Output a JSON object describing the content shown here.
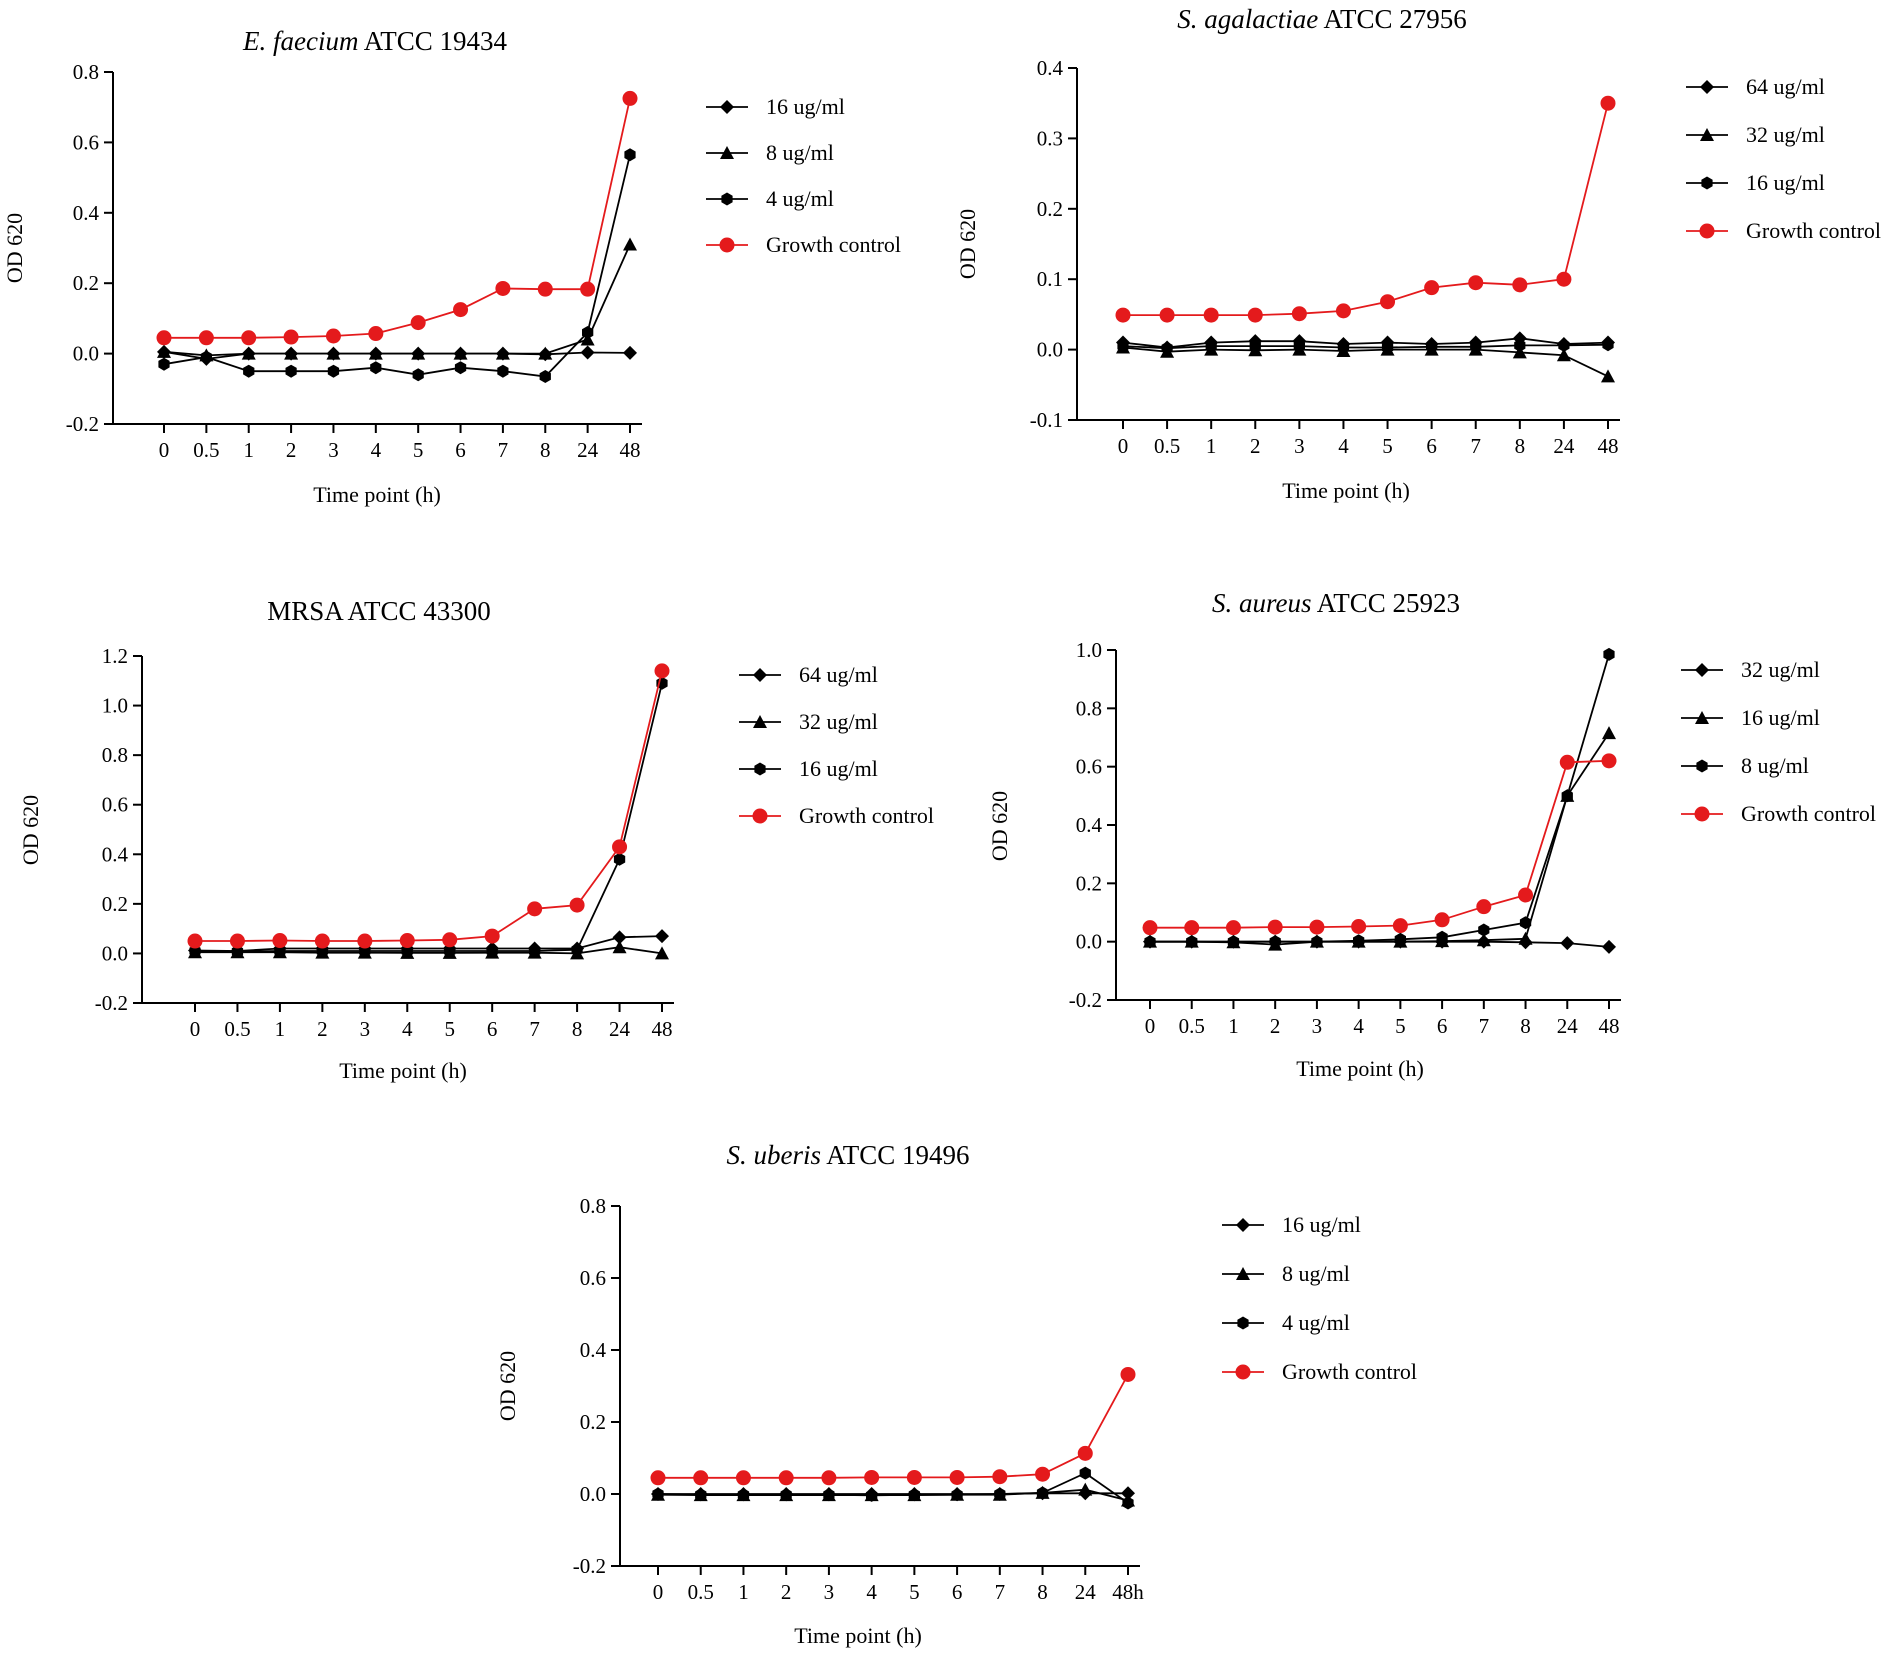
{
  "colors": {
    "treatment": "#000000",
    "control": "#e41a1c",
    "axis": "#000000"
  },
  "chart_data": [
    {
      "type": "line",
      "title_italic": "E. faecium",
      "title_rest": " ATCC 19434",
      "xlabel": "Time point (h)",
      "ylabel": "OD 620",
      "categories": [
        "0",
        "0.5",
        "1",
        "2",
        "3",
        "4",
        "5",
        "6",
        "7",
        "8",
        "24",
        "48"
      ],
      "ylim": [
        -0.2,
        0.8
      ],
      "yticks": [
        "-0.2",
        "0.0",
        "0.2",
        "0.4",
        "0.6",
        "0.8"
      ],
      "series": [
        {
          "name": "16 ug/ml",
          "marker": "diamond",
          "values": [
            0.005,
            -0.015,
            0.0,
            0.0,
            0.0,
            0.0,
            0.0,
            0.0,
            0.0,
            -0.002,
            0.003,
            0.002
          ]
        },
        {
          "name": "8 ug/ml",
          "marker": "triangle",
          "values": [
            0.005,
            -0.005,
            0.0,
            0.0,
            0.0,
            0.0,
            0.0,
            0.0,
            0.0,
            0.0,
            0.04,
            0.31
          ]
        },
        {
          "name": "4 ug/ml",
          "marker": "hexagon",
          "values": [
            -0.03,
            -0.01,
            -0.05,
            -0.05,
            -0.05,
            -0.04,
            -0.06,
            -0.04,
            -0.05,
            -0.065,
            0.06,
            0.565
          ]
        },
        {
          "name": "Growth control",
          "marker": "circle",
          "values": [
            0.045,
            0.045,
            0.045,
            0.047,
            0.05,
            0.057,
            0.088,
            0.125,
            0.185,
            0.183,
            0.183,
            0.725
          ]
        }
      ]
    },
    {
      "type": "line",
      "title_italic": "S. agalactiae",
      "title_rest": " ATCC 27956",
      "xlabel": "Time point (h)",
      "ylabel": "OD 620",
      "categories": [
        "0",
        "0.5",
        "1",
        "2",
        "3",
        "4",
        "5",
        "6",
        "7",
        "8",
        "24",
        "48"
      ],
      "ylim": [
        -0.1,
        0.4
      ],
      "yticks": [
        "-0.1",
        "0.0",
        "0.1",
        "0.2",
        "0.3",
        "0.4"
      ],
      "series": [
        {
          "name": "64 ug/ml",
          "marker": "diamond",
          "values": [
            0.01,
            0.003,
            0.01,
            0.012,
            0.012,
            0.008,
            0.01,
            0.008,
            0.01,
            0.016,
            0.008,
            0.01
          ]
        },
        {
          "name": "32 ug/ml",
          "marker": "triangle",
          "values": [
            0.003,
            -0.003,
            0.0,
            -0.001,
            0.0,
            -0.002,
            0.0,
            0.0,
            0.0,
            -0.004,
            -0.008,
            -0.038
          ]
        },
        {
          "name": "16 ug/ml",
          "marker": "hexagon",
          "values": [
            0.005,
            0.002,
            0.005,
            0.005,
            0.005,
            0.003,
            0.003,
            0.004,
            0.004,
            0.006,
            0.006,
            0.007
          ]
        },
        {
          "name": "Growth control",
          "marker": "circle",
          "values": [
            0.049,
            0.049,
            0.049,
            0.049,
            0.051,
            0.055,
            0.068,
            0.088,
            0.095,
            0.092,
            0.1,
            0.35
          ]
        }
      ]
    },
    {
      "type": "line",
      "title_italic": "",
      "title_rest": "MRSA ATCC 43300",
      "xlabel": "Time point (h)",
      "ylabel": "OD 620",
      "categories": [
        "0",
        "0.5",
        "1",
        "2",
        "3",
        "4",
        "5",
        "6",
        "7",
        "8",
        "24",
        "48"
      ],
      "ylim": [
        -0.2,
        1.2
      ],
      "yticks": [
        "-0.2",
        "0.0",
        "0.2",
        "0.4",
        "0.6",
        "0.8",
        "1.0",
        "1.2"
      ],
      "series": [
        {
          "name": "64 ug/ml",
          "marker": "diamond",
          "values": [
            0.012,
            0.01,
            0.02,
            0.02,
            0.02,
            0.02,
            0.02,
            0.02,
            0.02,
            0.02,
            0.065,
            0.07
          ]
        },
        {
          "name": "32 ug/ml",
          "marker": "triangle",
          "values": [
            0.005,
            0.005,
            0.005,
            0.003,
            0.003,
            0.002,
            0.002,
            0.003,
            0.003,
            0.0,
            0.025,
            0.0
          ]
        },
        {
          "name": "16 ug/ml",
          "marker": "hexagon",
          "values": [
            0.01,
            0.008,
            0.01,
            0.01,
            0.01,
            0.01,
            0.01,
            0.01,
            0.01,
            0.015,
            0.38,
            1.09
          ]
        },
        {
          "name": "Growth control",
          "marker": "circle",
          "values": [
            0.05,
            0.05,
            0.052,
            0.05,
            0.05,
            0.052,
            0.055,
            0.07,
            0.18,
            0.195,
            0.43,
            1.14
          ]
        }
      ]
    },
    {
      "type": "line",
      "title_italic": "S. aureus",
      "title_rest": " ATCC 25923",
      "xlabel": "Time point (h)",
      "ylabel": "OD 620",
      "categories": [
        "0",
        "0.5",
        "1",
        "2",
        "3",
        "4",
        "5",
        "6",
        "7",
        "8",
        "24",
        "48"
      ],
      "ylim": [
        -0.2,
        1.0
      ],
      "yticks": [
        "-0.2",
        "0.0",
        "0.2",
        "0.4",
        "0.6",
        "0.8",
        "1.0"
      ],
      "series": [
        {
          "name": "32 ug/ml",
          "marker": "diamond",
          "values": [
            0.0,
            0.0,
            0.0,
            0.0,
            0.0,
            0.0,
            0.0,
            0.0,
            0.0,
            -0.002,
            -0.005,
            -0.018
          ]
        },
        {
          "name": "16 ug/ml",
          "marker": "triangle",
          "values": [
            0.0,
            0.0,
            -0.002,
            -0.01,
            0.0,
            0.0,
            0.0,
            0.002,
            0.005,
            0.01,
            0.5,
            0.715
          ]
        },
        {
          "name": "8 ug/ml",
          "marker": "hexagon",
          "values": [
            0.0,
            0.0,
            0.0,
            0.0,
            0.0,
            0.003,
            0.008,
            0.015,
            0.04,
            0.065,
            0.5,
            0.985
          ]
        },
        {
          "name": "Growth control",
          "marker": "circle",
          "values": [
            0.048,
            0.048,
            0.048,
            0.05,
            0.05,
            0.052,
            0.055,
            0.075,
            0.12,
            0.16,
            0.615,
            0.62
          ]
        }
      ]
    },
    {
      "type": "line",
      "title_italic": "S. uberis",
      "title_rest": " ATCC 19496",
      "xlabel": "Time point (h)",
      "ylabel": "OD 620",
      "categories": [
        "0",
        "0.5",
        "1",
        "2",
        "3",
        "4",
        "5",
        "6",
        "7",
        "8",
        "24",
        "48h"
      ],
      "ylim": [
        -0.2,
        0.8
      ],
      "yticks": [
        "-0.2",
        "0.0",
        "0.2",
        "0.4",
        "0.6",
        "0.8"
      ],
      "series": [
        {
          "name": "16 ug/ml",
          "marker": "diamond",
          "values": [
            0.0,
            0.0,
            0.0,
            0.0,
            0.0,
            0.0,
            0.0,
            0.0,
            0.0,
            0.002,
            0.002,
            0.002
          ]
        },
        {
          "name": "8 ug/ml",
          "marker": "triangle",
          "values": [
            -0.002,
            -0.003,
            -0.003,
            -0.003,
            -0.003,
            -0.003,
            -0.003,
            -0.002,
            -0.002,
            0.003,
            0.012,
            -0.018
          ]
        },
        {
          "name": "4 ug/ml",
          "marker": "hexagon",
          "values": [
            0.0,
            -0.002,
            -0.002,
            -0.002,
            -0.002,
            -0.004,
            -0.002,
            -0.002,
            0.0,
            0.003,
            0.058,
            -0.025
          ]
        },
        {
          "name": "Growth control",
          "marker": "circle",
          "values": [
            0.045,
            0.045,
            0.045,
            0.045,
            0.045,
            0.046,
            0.046,
            0.046,
            0.048,
            0.055,
            0.113,
            0.332
          ]
        }
      ]
    }
  ]
}
